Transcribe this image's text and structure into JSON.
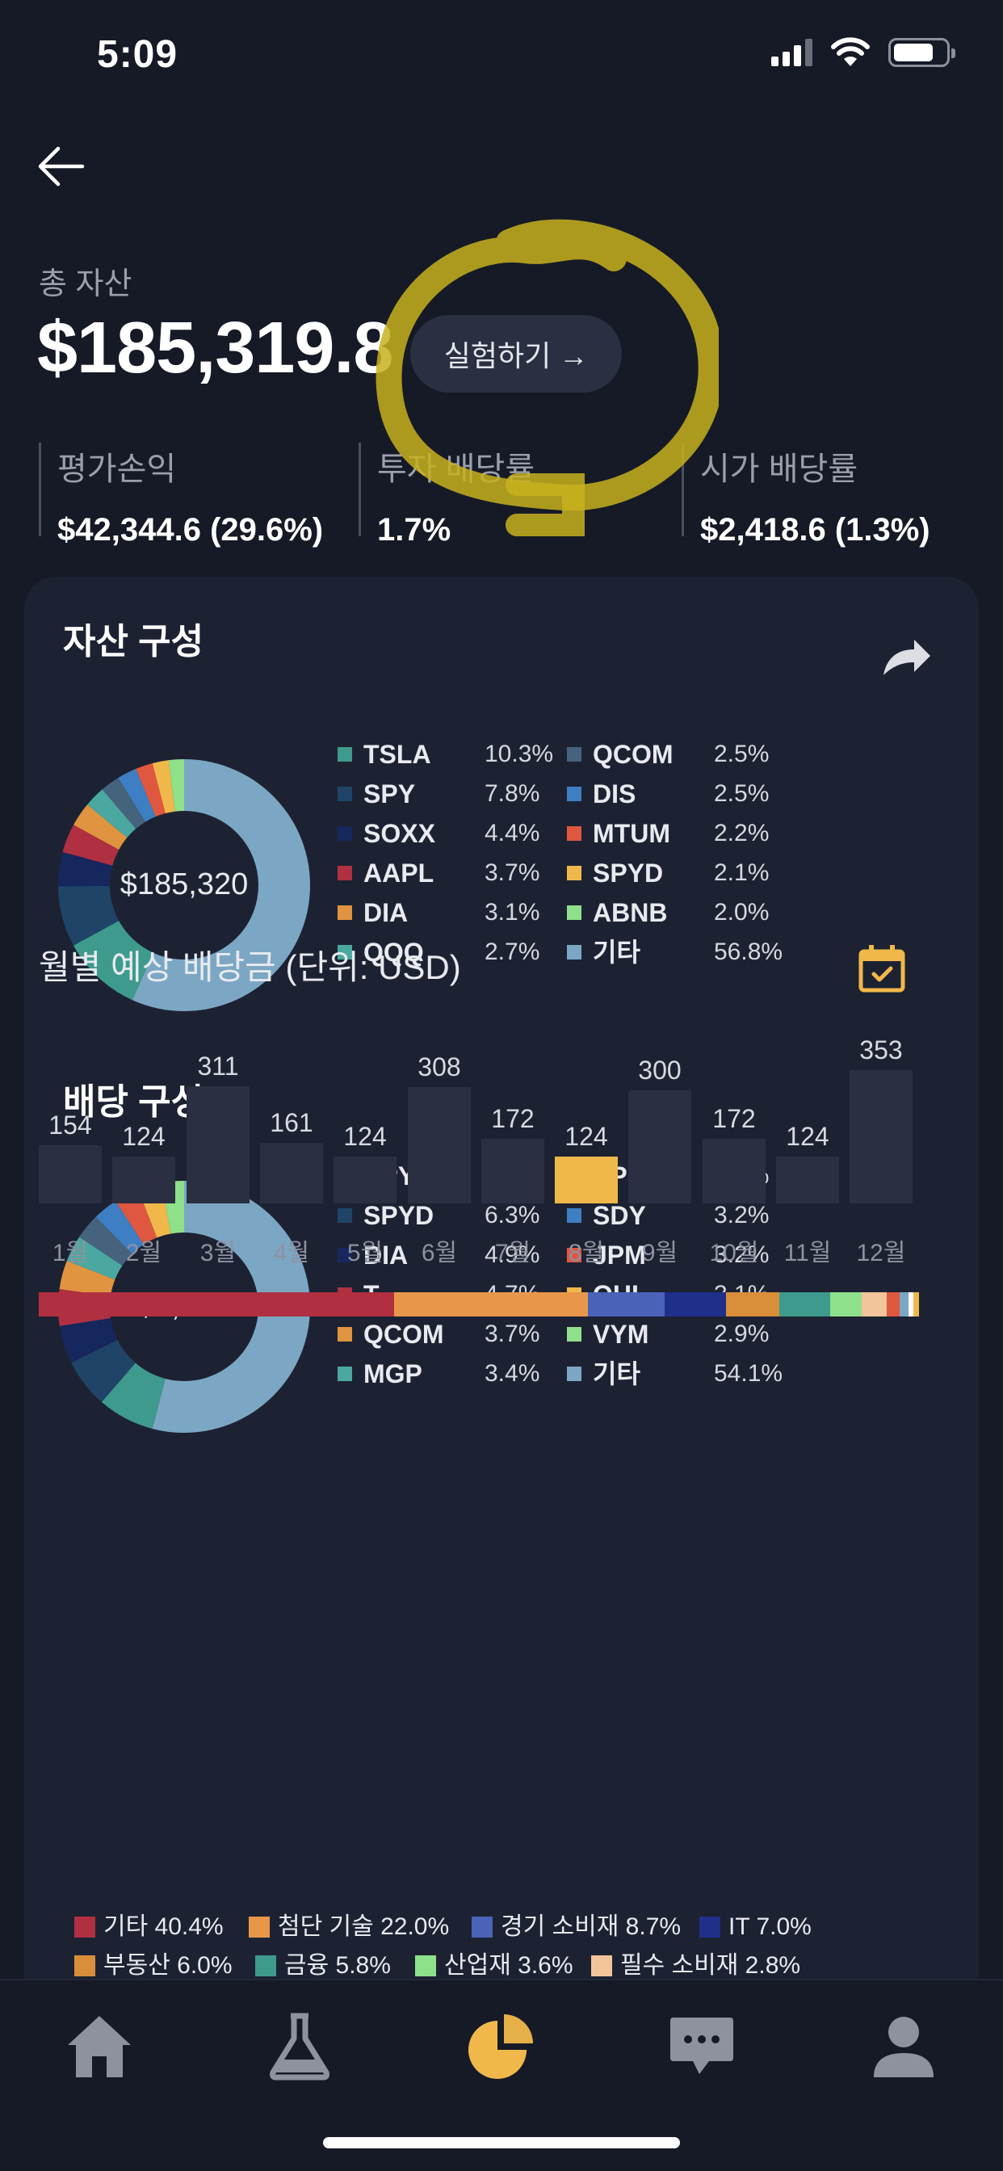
{
  "status": {
    "time": "5:09"
  },
  "summary": {
    "total_label": "총 자산",
    "total_value": "$185,319.8",
    "try_button": "실험하기 →",
    "stats": [
      {
        "label": "평가손익",
        "value": "$42,344.6 (29.6%)"
      },
      {
        "label": "투자 배당률",
        "value": "1.7%"
      },
      {
        "label": "시가 배당률",
        "value": "$2,418.6 (1.3%)"
      }
    ]
  },
  "asset": {
    "title": "자산 구성",
    "center": "$185,320",
    "items": [
      {
        "name": "TSLA",
        "pct": "10.3%",
        "value": 10.3,
        "color": "#3e9a8c"
      },
      {
        "name": "SPY",
        "pct": "7.8%",
        "value": 7.8,
        "color": "#1f4468"
      },
      {
        "name": "SOXX",
        "pct": "4.4%",
        "value": 4.4,
        "color": "#15275c"
      },
      {
        "name": "AAPL",
        "pct": "3.7%",
        "value": 3.7,
        "color": "#b03041"
      },
      {
        "name": "DIA",
        "pct": "3.1%",
        "value": 3.1,
        "color": "#e0943f"
      },
      {
        "name": "QQQ",
        "pct": "2.7%",
        "value": 2.7,
        "color": "#4aa8a0"
      },
      {
        "name": "QCOM",
        "pct": "2.5%",
        "value": 2.5,
        "color": "#46637e"
      },
      {
        "name": "DIS",
        "pct": "2.5%",
        "value": 2.5,
        "color": "#3e7fc4"
      },
      {
        "name": "MTUM",
        "pct": "2.2%",
        "value": 2.2,
        "color": "#e0573f"
      },
      {
        "name": "SPYD",
        "pct": "2.1%",
        "value": 2.1,
        "color": "#f0b84a"
      },
      {
        "name": "ABNB",
        "pct": "2.0%",
        "value": 2.0,
        "color": "#8ee08a"
      },
      {
        "name": "기타",
        "pct": "56.8%",
        "value": 56.8,
        "color": "#7ba7c4"
      }
    ]
  },
  "dividend": {
    "title": "배당 구성",
    "center": "$2,419",
    "items": [
      {
        "name": "SPY",
        "pct": "7.3%",
        "value": 7.3,
        "color": "#3e9a8c"
      },
      {
        "name": "SPYD",
        "pct": "6.3%",
        "value": 6.3,
        "color": "#1f4468"
      },
      {
        "name": "DIA",
        "pct": "4.9%",
        "value": 4.9,
        "color": "#15275c"
      },
      {
        "name": "T",
        "pct": "4.7%",
        "value": 4.7,
        "color": "#b03041"
      },
      {
        "name": "QCOM",
        "pct": "3.7%",
        "value": 3.7,
        "color": "#e0943f"
      },
      {
        "name": "MGP",
        "pct": "3.4%",
        "value": 3.4,
        "color": "#4aa8a0"
      },
      {
        "name": "EPR",
        "pct": "3.3%",
        "value": 3.3,
        "color": "#46637e"
      },
      {
        "name": "SDY",
        "pct": "3.2%",
        "value": 3.2,
        "color": "#3e7fc4"
      },
      {
        "name": "JPM",
        "pct": "3.2%",
        "value": 3.2,
        "color": "#e0573f"
      },
      {
        "name": "OHI",
        "pct": "3.1%",
        "value": 3.1,
        "color": "#f0b84a"
      },
      {
        "name": "VYM",
        "pct": "2.9%",
        "value": 2.9,
        "color": "#8ee08a"
      },
      {
        "name": "기타",
        "pct": "54.1%",
        "value": 54.1,
        "color": "#7ba7c4"
      }
    ]
  },
  "monthly": {
    "title": "월별 예상 배당금 (단위: USD)",
    "highlight_color": "#f0b84a",
    "bar_color": "#2a3042",
    "highlight_index": 7
  },
  "chart_data": {
    "type": "bar",
    "categories": [
      "1월",
      "2월",
      "3월",
      "4월",
      "5월",
      "6월",
      "7월",
      "8월",
      "9월",
      "10월",
      "11월",
      "12월"
    ],
    "values": [
      154,
      124,
      311,
      161,
      124,
      308,
      172,
      124,
      300,
      172,
      124,
      353
    ],
    "title": "월별 예상 배당금 (단위: USD)"
  },
  "sectors": [
    {
      "name": "기타",
      "pct": "40.4%",
      "value": 40.4,
      "color": "#b03041"
    },
    {
      "name": "첨단 기술",
      "pct": "22.0%",
      "value": 22.0,
      "color": "#e8974a"
    },
    {
      "name": "경기 소비재",
      "pct": "8.7%",
      "value": 8.7,
      "color": "#4a62b8"
    },
    {
      "name": "IT",
      "pct": "7.0%",
      "value": 7.0,
      "color": "#1f2f8a"
    },
    {
      "name": "부동산",
      "pct": "6.0%",
      "value": 6.0,
      "color": "#d98e3a"
    },
    {
      "name": "금융",
      "pct": "5.8%",
      "value": 5.8,
      "color": "#3e9a8c"
    },
    {
      "name": "산업재",
      "pct": "3.6%",
      "value": 3.6,
      "color": "#8ee08a"
    },
    {
      "name": "필수 소비재",
      "pct": "2.8%",
      "value": 2.8,
      "color": "#f2c49a"
    },
    {
      "name": "",
      "pct": "",
      "value": 1.5,
      "color": "#e0573f"
    },
    {
      "name": "",
      "pct": "",
      "value": 1.0,
      "color": "#7ba7c4"
    },
    {
      "name": "",
      "pct": "",
      "value": 0.6,
      "color": "#ffffff"
    },
    {
      "name": "",
      "pct": "",
      "value": 0.6,
      "color": "#f0b84a"
    }
  ],
  "tabs": [
    {
      "name": "home-icon"
    },
    {
      "name": "flask-icon"
    },
    {
      "name": "pie-chart-icon"
    },
    {
      "name": "chat-icon"
    },
    {
      "name": "profile-icon"
    }
  ]
}
